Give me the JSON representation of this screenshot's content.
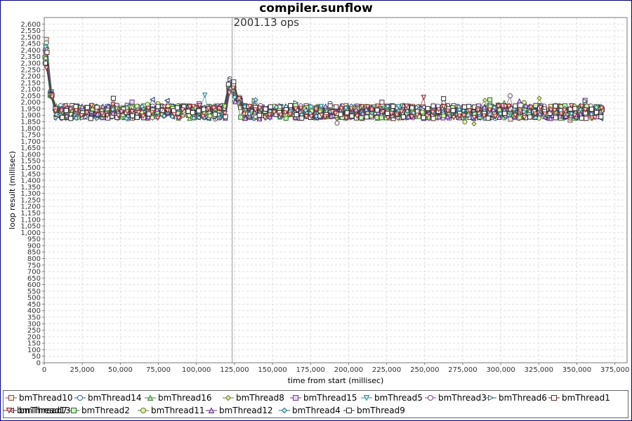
{
  "chart_data": {
    "type": "scatter",
    "title": "compiler.sunflow",
    "xlabel": "time from start (millisec)",
    "ylabel": "loop result (millisec)",
    "xlim": [
      0,
      383000
    ],
    "ylim": [
      0,
      2650
    ],
    "x_ticks": [
      "0",
      "25,000",
      "50,000",
      "75,000",
      "100,000",
      "125,000",
      "150,000",
      "175,000",
      "200,000",
      "225,000",
      "250,000",
      "275,000",
      "300,000",
      "325,000",
      "350,000",
      "375,000"
    ],
    "y_ticks": [
      "0",
      "50",
      "100",
      "150",
      "200",
      "250",
      "300",
      "350",
      "400",
      "450",
      "500",
      "550",
      "600",
      "650",
      "700",
      "750",
      "800",
      "850",
      "900",
      "950",
      "1,000",
      "1,050",
      "1,100",
      "1,150",
      "1,200",
      "1,250",
      "1,300",
      "1,350",
      "1,400",
      "1,450",
      "1,500",
      "1,550",
      "1,600",
      "1,650",
      "1,700",
      "1,750",
      "1,800",
      "1,850",
      "1,900",
      "1,950",
      "2,000",
      "2,050",
      "2,100",
      "2,150",
      "2,200",
      "2,250",
      "2,300",
      "2,350",
      "2,400",
      "2,450",
      "2,500",
      "2,550",
      "2,600"
    ],
    "grid": true,
    "legend_position": "bottom",
    "annotation": {
      "text": "2001.13 ops",
      "x": 123500
    },
    "series": [
      {
        "name": "bmThread10",
        "marker": "square",
        "color": "#8b4a4a",
        "fill": "#f4e9d6"
      },
      {
        "name": "bmThread14",
        "marker": "circle",
        "color": "#2e5f8f",
        "fill": "#ffffff"
      },
      {
        "name": "bmThread16",
        "marker": "triangle-up",
        "color": "#3a7a3a",
        "fill": "#b8e6a0"
      },
      {
        "name": "bmThread8",
        "marker": "diamond",
        "color": "#6b7a2a",
        "fill": "#d8e8a0"
      },
      {
        "name": "bmThread15",
        "marker": "square",
        "color": "#6a3a8a",
        "fill": "#e8d8f0"
      },
      {
        "name": "bmThread5",
        "marker": "triangle-down",
        "color": "#2a8a8a",
        "fill": "#c0f0f0"
      },
      {
        "name": "bmThread3",
        "marker": "circle",
        "color": "#6a4a6a",
        "fill": "#ffffff"
      },
      {
        "name": "bmThread6",
        "marker": "triangle-right",
        "color": "#3a5a5a",
        "fill": "#ffffff"
      },
      {
        "name": "bmThread1",
        "marker": "square",
        "color": "#5a2a2a",
        "fill": "#ffffff"
      },
      {
        "name": "bmThread7",
        "marker": "triangle-left",
        "color": "#1a2a6a",
        "fill": "#ffffff"
      },
      {
        "name": "bmThread2",
        "marker": "square",
        "color": "#2a6a2a",
        "fill": "#d0f0c0"
      },
      {
        "name": "bmThread11",
        "marker": "circle",
        "color": "#5a7a2a",
        "fill": "#e0f0b0"
      },
      {
        "name": "bmThread12",
        "marker": "triangle-up",
        "color": "#5a2a7a",
        "fill": "#e0c8f0"
      },
      {
        "name": "bmThread4",
        "marker": "diamond",
        "color": "#2a6a7a",
        "fill": "#c0e8f0"
      },
      {
        "name": "bmThread9",
        "marker": "square",
        "color": "#2a2a2a",
        "fill": "#ffffff"
      },
      {
        "name": "bmThread13",
        "marker": "triangle-down",
        "color": "#8a2a2a",
        "fill": "#f0d0d0"
      }
    ],
    "value_pattern": {
      "x_range": [
        1200,
        366000
      ],
      "warmup_peak": 2500,
      "steady_mean": 1925,
      "steady_spread": 50,
      "restart_x": 124000,
      "restart_peak": 2180
    }
  }
}
